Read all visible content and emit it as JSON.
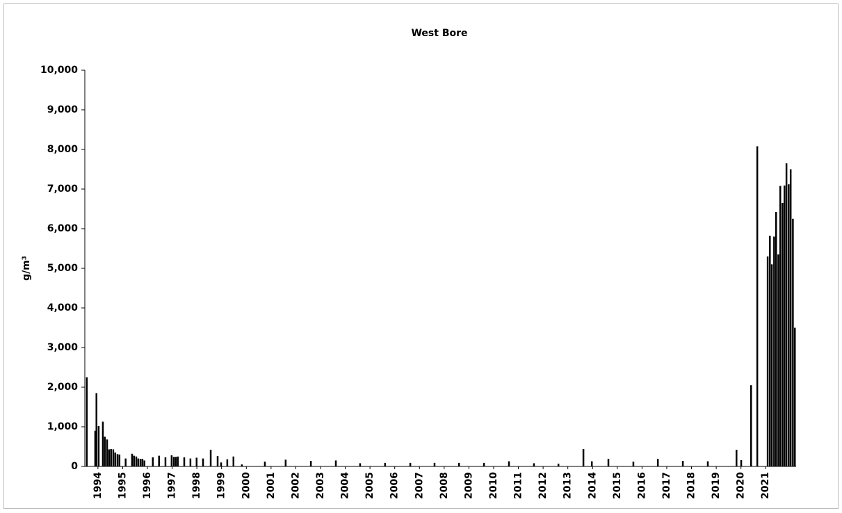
{
  "chart_data": {
    "type": "bar",
    "title": "West Bore",
    "y_label": "g/m³",
    "color": "#000000",
    "x": [
      1993.55,
      1993.89,
      1993.94,
      1994.03,
      1994.2,
      1994.28,
      1994.37,
      1994.45,
      1994.53,
      1994.62,
      1994.7,
      1994.79,
      1994.87,
      1995.12,
      1995.38,
      1995.46,
      1995.55,
      1995.63,
      1995.72,
      1995.8,
      1995.88,
      1996.22,
      1996.47,
      1996.73,
      1996.98,
      1997.07,
      1997.15,
      1997.23,
      1997.49,
      1997.74,
      1997.99,
      1998.25,
      1998.56,
      1998.84,
      1998.98,
      1999.23,
      1999.48,
      1999.82,
      2000.75,
      2001.59,
      2002.61,
      2003.62,
      2004.6,
      2005.61,
      2006.63,
      2007.61,
      2008.6,
      2009.61,
      2010.62,
      2011.63,
      2012.62,
      2013.63,
      2013.97,
      2014.64,
      2015.65,
      2016.64,
      2017.65,
      2018.66,
      2019.82,
      2020.01,
      2020.41,
      2020.66,
      2021.08,
      2021.17,
      2021.25,
      2021.34,
      2021.42,
      2021.51,
      2021.59,
      2021.68,
      2021.76,
      2021.84,
      2021.93,
      2022.01,
      2022.1,
      2022.18
    ],
    "values": [
      2250,
      900,
      1850,
      1020,
      1130,
      750,
      680,
      430,
      440,
      430,
      350,
      310,
      300,
      200,
      320,
      270,
      250,
      200,
      190,
      190,
      150,
      230,
      270,
      230,
      280,
      240,
      240,
      250,
      230,
      200,
      220,
      200,
      420,
      260,
      100,
      180,
      250,
      50,
      120,
      170,
      140,
      150,
      80,
      90,
      90,
      90,
      90,
      90,
      130,
      80,
      70,
      440,
      130,
      190,
      120,
      190,
      140,
      130,
      420,
      160,
      2050,
      8080,
      5300,
      5820,
      5100,
      5800,
      6420,
      5350,
      7080,
      6650,
      7090,
      7650,
      7120,
      7500,
      6250,
      3500
    ],
    "xlim": [
      1993.47,
      2022.23
    ],
    "xticks": [
      1994,
      1995,
      1996,
      1997,
      1998,
      1999,
      2000,
      2001,
      2002,
      2003,
      2004,
      2005,
      2006,
      2007,
      2008,
      2009,
      2010,
      2011,
      2012,
      2013,
      2014,
      2015,
      2016,
      2017,
      2018,
      2019,
      2020,
      2021
    ],
    "ylim": [
      0,
      10000
    ],
    "yticks": [
      0,
      {
        "value": 1000,
        "label": "1,000"
      },
      {
        "value": 2000,
        "label": "2,000"
      },
      {
        "value": 3000,
        "label": "3,000"
      },
      {
        "value": 4000,
        "label": "4,000"
      },
      {
        "value": 5000,
        "label": "5,000"
      },
      {
        "value": 6000,
        "label": "6,000"
      },
      {
        "value": 7000,
        "label": "7,000"
      },
      {
        "value": 8000,
        "label": "8,000"
      },
      {
        "value": 9000,
        "label": "9,000"
      },
      {
        "value": 10000,
        "label": "10,000"
      }
    ]
  }
}
